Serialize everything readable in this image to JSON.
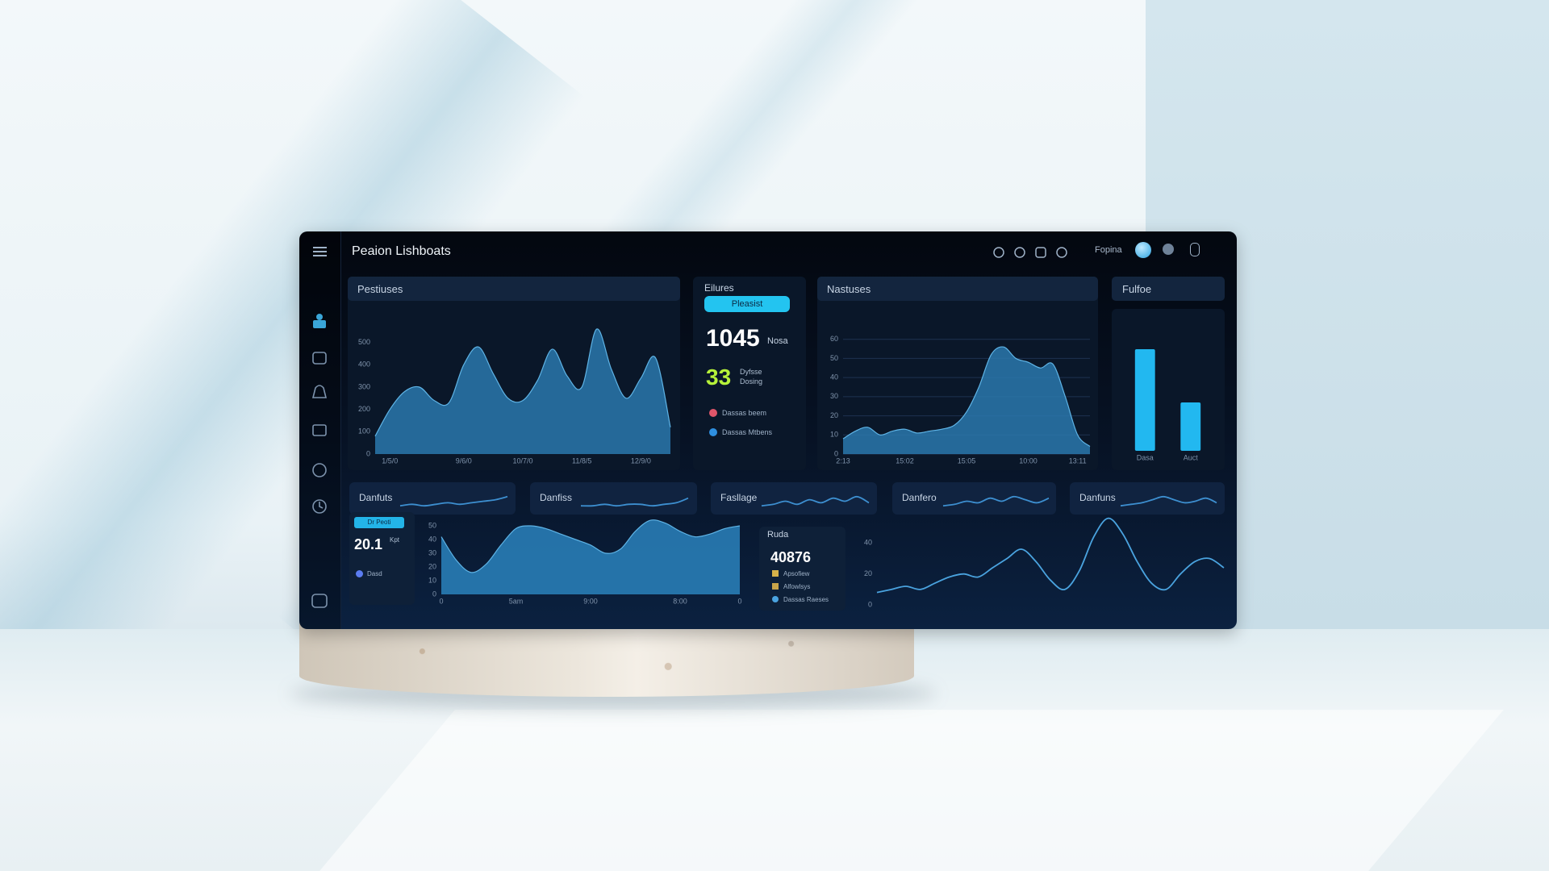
{
  "header": {
    "title": "Peaion Lishboats",
    "user": "Fopina"
  },
  "stats": {
    "title": "Eilures",
    "button": "Pleasist",
    "big": 1045,
    "big_unit": "Nosa",
    "second": 33,
    "second_label_1": "Dyfsse",
    "second_label_2": "Dosing",
    "legend": [
      "Dassas beem",
      "Dassas Mtbens"
    ]
  },
  "left_card": {
    "badge": "Dr Peoti",
    "value": "20.1",
    "unit": "Kpt",
    "legend": "Dasd"
  },
  "mid_card": {
    "title": "Ruda",
    "value": 40876,
    "legend": [
      "Apsofiew",
      "Alfowlsys",
      "Dassas Raeses"
    ]
  },
  "chart_data": [
    {
      "type": "area",
      "title": "Pestiuses",
      "color": "#2a78ad",
      "grid": false,
      "values": [
        80,
        200,
        280,
        300,
        240,
        230,
        400,
        480,
        360,
        250,
        240,
        330,
        470,
        350,
        300,
        560,
        380,
        250,
        340,
        430,
        120
      ],
      "categories": [
        null,
        "1/5/0",
        null,
        null,
        null,
        null,
        "9/6/0",
        null,
        null,
        null,
        "10/7/0",
        null,
        null,
        null,
        "11/8/5",
        null,
        null,
        null,
        "12/9/0",
        null,
        null
      ],
      "ylim": [
        0,
        600
      ],
      "yticks": [
        0,
        100,
        200,
        300,
        400,
        500
      ]
    },
    {
      "type": "area",
      "title": "Nastuses",
      "color": "#2a78ad",
      "grid": true,
      "values": [
        8,
        12,
        14,
        10,
        12,
        13,
        11,
        12,
        13,
        15,
        22,
        35,
        52,
        56,
        50,
        48,
        45,
        47,
        30,
        10,
        4
      ],
      "categories": [
        "2:13",
        null,
        null,
        null,
        null,
        "15:02",
        null,
        null,
        null,
        null,
        "15:05",
        null,
        null,
        null,
        null,
        "10:00",
        null,
        null,
        null,
        "13:11",
        null
      ],
      "ylim": [
        0,
        70
      ],
      "yticks": [
        0,
        10,
        20,
        30,
        40,
        50,
        60
      ]
    },
    {
      "type": "bar",
      "title": "Fulfoe",
      "color": "#22b8f0",
      "categories": [
        "Dasa",
        "Auct"
      ],
      "values": [
        84,
        40
      ],
      "ylim": [
        0,
        100
      ]
    },
    {
      "type": "line",
      "title": "Danfuts",
      "color": "#3d8fd0",
      "values": [
        2,
        3,
        2,
        3,
        4,
        3,
        4,
        5,
        6,
        8
      ],
      "ylim": [
        0,
        10
      ]
    },
    {
      "type": "line",
      "title": "Danfiss",
      "color": "#3d8fd0",
      "values": [
        2,
        2,
        3,
        2,
        3,
        3,
        2,
        3,
        4,
        7
      ],
      "ylim": [
        0,
        10
      ]
    },
    {
      "type": "line",
      "title": "Fasllage",
      "color": "#3d8fd0",
      "values": [
        2,
        3,
        5,
        3,
        6,
        4,
        7,
        5,
        8,
        4
      ],
      "ylim": [
        0,
        10
      ]
    },
    {
      "type": "line",
      "title": "Danfero",
      "color": "#3d8fd0",
      "values": [
        2,
        3,
        5,
        4,
        7,
        5,
        8,
        6,
        4,
        7
      ],
      "ylim": [
        0,
        10
      ]
    },
    {
      "type": "line",
      "title": "Danfuns",
      "color": "#3d8fd0",
      "values": [
        2,
        3,
        4,
        6,
        8,
        6,
        4,
        5,
        7,
        4
      ],
      "ylim": [
        0,
        10
      ]
    },
    {
      "type": "area",
      "color": "#2a82bd",
      "grid": false,
      "values": [
        42,
        25,
        16,
        22,
        36,
        48,
        50,
        48,
        44,
        40,
        36,
        30,
        33,
        46,
        54,
        52,
        46,
        42,
        44,
        48,
        50
      ],
      "categories": [
        "0",
        null,
        null,
        null,
        null,
        "5am",
        null,
        null,
        null,
        null,
        "9:00",
        null,
        null,
        null,
        null,
        null,
        "8:00",
        null,
        null,
        null,
        "0"
      ],
      "ylim": [
        0,
        60
      ],
      "yticks": [
        0,
        10,
        20,
        30,
        40,
        50
      ]
    },
    {
      "type": "line",
      "color": "#4aa3df",
      "grid": false,
      "values": [
        8,
        10,
        12,
        10,
        14,
        18,
        20,
        18,
        24,
        30,
        36,
        28,
        16,
        10,
        22,
        44,
        56,
        46,
        28,
        14,
        10,
        20,
        28,
        30,
        24
      ],
      "ylim": [
        0,
        60
      ],
      "yticks": [
        0,
        20,
        40
      ]
    }
  ]
}
